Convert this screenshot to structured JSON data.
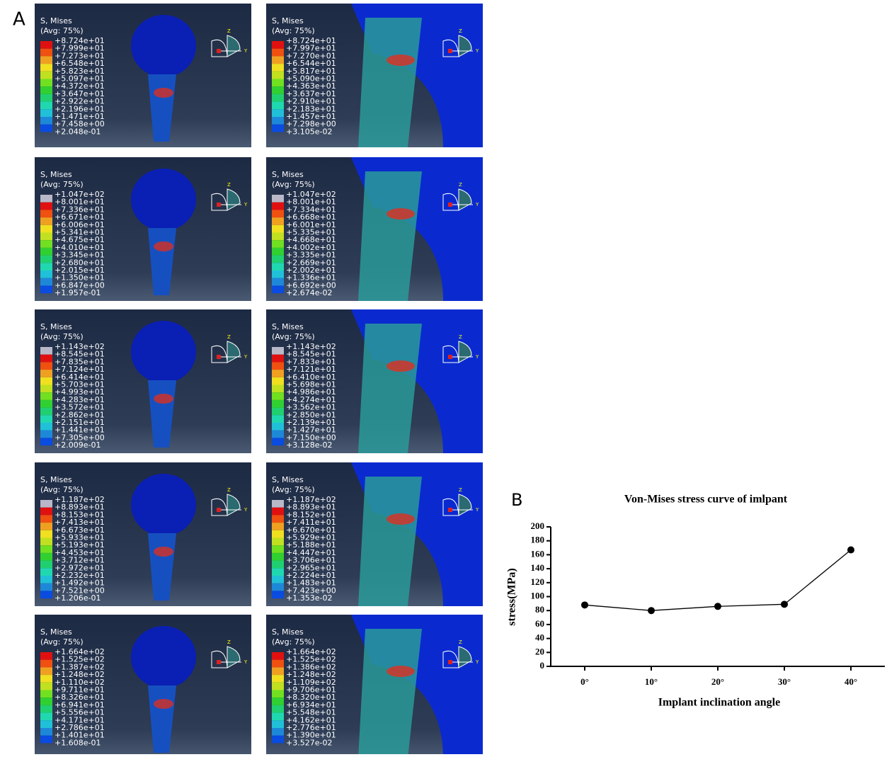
{
  "panel_a": {
    "label": "A",
    "legend_title": "S, Mises",
    "legend_subtitle": "(Avg: 75%)",
    "triad": [
      "Z",
      "Y"
    ],
    "panels": [
      {
        "legend": [
          "+8.724e+01",
          "+7.999e+01",
          "+7.273e+01",
          "+6.548e+01",
          "+5.823e+01",
          "+5.097e+01",
          "+4.372e+01",
          "+3.647e+01",
          "+2.922e+01",
          "+2.196e+01",
          "+1.471e+01",
          "+7.458e+00",
          "+2.048e-01"
        ]
      },
      {
        "legend": [
          "+8.724e+01",
          "+7.997e+01",
          "+7.270e+01",
          "+6.544e+01",
          "+5.817e+01",
          "+5.090e+01",
          "+4.363e+01",
          "+3.637e+01",
          "+2.910e+01",
          "+2.183e+01",
          "+1.457e+01",
          "+7.298e+00",
          "+3.105e-02"
        ]
      },
      {
        "legend": [
          "+1.047e+02",
          "+8.001e+01",
          "+7.336e+01",
          "+6.671e+01",
          "+6.006e+01",
          "+5.341e+01",
          "+4.675e+01",
          "+4.010e+01",
          "+3.345e+01",
          "+2.680e+01",
          "+2.015e+01",
          "+1.350e+01",
          "+6.847e+00",
          "+1.957e-01"
        ]
      },
      {
        "legend": [
          "+1.047e+02",
          "+8.001e+01",
          "+7.334e+01",
          "+6.668e+01",
          "+6.001e+01",
          "+5.335e+01",
          "+4.668e+01",
          "+4.002e+01",
          "+3.335e+01",
          "+2.669e+01",
          "+2.002e+01",
          "+1.336e+01",
          "+6.692e+00",
          "+2.674e-02"
        ]
      },
      {
        "legend": [
          "+1.143e+02",
          "+8.545e+01",
          "+7.835e+01",
          "+7.124e+01",
          "+6.414e+01",
          "+5.703e+01",
          "+4.993e+01",
          "+4.283e+01",
          "+3.572e+01",
          "+2.862e+01",
          "+2.151e+01",
          "+1.441e+01",
          "+7.305e+00",
          "+2.009e-01"
        ]
      },
      {
        "legend": [
          "+1.143e+02",
          "+8.545e+01",
          "+7.833e+01",
          "+7.121e+01",
          "+6.410e+01",
          "+5.698e+01",
          "+4.986e+01",
          "+4.274e+01",
          "+3.562e+01",
          "+2.850e+01",
          "+2.139e+01",
          "+1.427e+01",
          "+7.150e+00",
          "+3.128e-02"
        ]
      },
      {
        "legend": [
          "+1.187e+02",
          "+8.893e+01",
          "+8.153e+01",
          "+7.413e+01",
          "+6.673e+01",
          "+5.933e+01",
          "+5.193e+01",
          "+4.453e+01",
          "+3.712e+01",
          "+2.972e+01",
          "+2.232e+01",
          "+1.492e+01",
          "+7.521e+00",
          "+1.206e-01"
        ]
      },
      {
        "legend": [
          "+1.187e+02",
          "+8.893e+01",
          "+8.152e+01",
          "+7.411e+01",
          "+6.670e+01",
          "+5.929e+01",
          "+5.188e+01",
          "+4.447e+01",
          "+3.706e+01",
          "+2.965e+01",
          "+2.224e+01",
          "+1.483e+01",
          "+7.423e+00",
          "+1.353e-02"
        ]
      },
      {
        "legend": [
          "+1.664e+02",
          "+1.525e+02",
          "+1.387e+02",
          "+1.248e+02",
          "+1.110e+02",
          "+9.711e+01",
          "+8.326e+01",
          "+6.941e+01",
          "+5.556e+01",
          "+4.171e+01",
          "+2.786e+01",
          "+1.401e+01",
          "+1.608e-01"
        ]
      },
      {
        "legend": [
          "+1.664e+02",
          "+1.525e+02",
          "+1.386e+02",
          "+1.248e+02",
          "+1.109e+02",
          "+9.706e+01",
          "+8.320e+01",
          "+6.934e+01",
          "+5.548e+01",
          "+4.162e+01",
          "+2.776e+01",
          "+1.390e+01",
          "+3.527e-02"
        ]
      }
    ]
  },
  "chart_data": {
    "type": "line",
    "panel_label": "B",
    "title": "Von-Mises stress curve of imlpant",
    "x_label": "Implant inclination angle",
    "y_label": "stress(MPa)",
    "categories": [
      "0°",
      "10°",
      "20°",
      "30°",
      "40°"
    ],
    "values": [
      88,
      80,
      86,
      89,
      167
    ],
    "color": "#000000",
    "ylim": [
      0,
      200
    ],
    "yticks": [
      0,
      20,
      40,
      60,
      80,
      100,
      120,
      140,
      160,
      180,
      200
    ]
  }
}
